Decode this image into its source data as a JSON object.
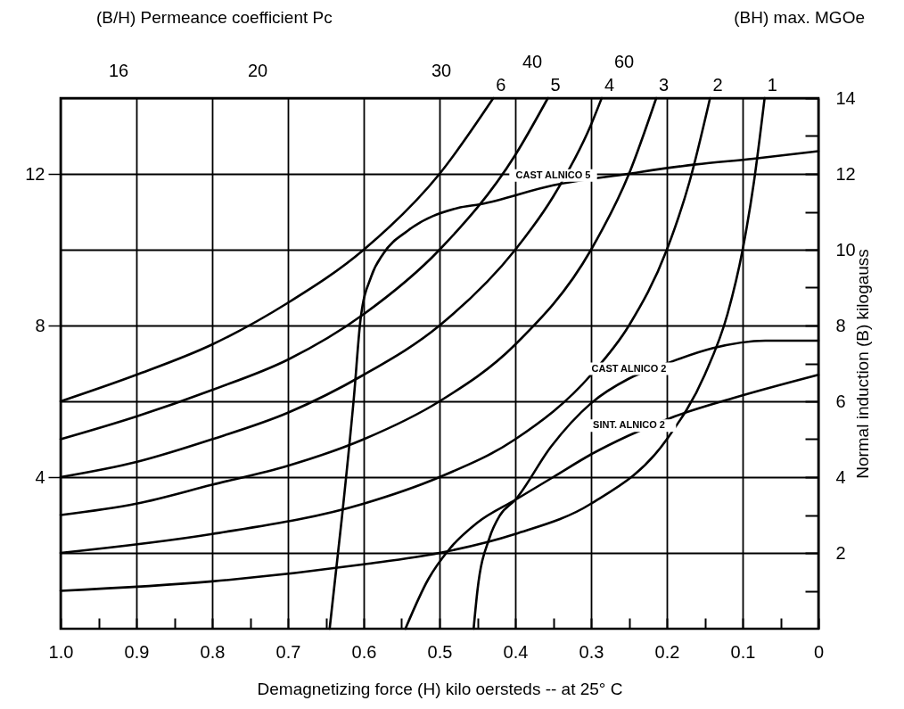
{
  "chart_data": {
    "type": "line",
    "xlabel": "Demagnetizing force (H) kilo oersteds -- at 25° C",
    "y2label": "Normal induction (B) kilogauss",
    "annotations": [
      "(B/H)   Permeance coefficient Pc",
      "(BH) max. MGOe",
      "16",
      "20",
      "30",
      "40",
      "60"
    ],
    "grid": true,
    "xlim": [
      1,
      0
    ],
    "xticks": [
      {
        "value": 1,
        "label": "1.0"
      },
      {
        "value": 0.95,
        "label": null
      },
      0.9,
      {
        "value": 0.85,
        "label": null
      },
      0.8,
      {
        "value": 0.75,
        "label": null
      },
      0.7,
      {
        "value": 0.65,
        "label": null
      },
      0.6,
      {
        "value": 0.55,
        "label": null
      },
      0.5,
      {
        "value": 0.45,
        "label": null
      },
      0.4,
      {
        "value": 0.35,
        "label": null
      },
      0.3,
      {
        "value": 0.25,
        "label": null
      },
      0.2,
      {
        "value": 0.15,
        "label": null
      },
      0.1,
      {
        "value": 0.05,
        "label": null
      },
      0
    ],
    "ylim": [
      0,
      14
    ],
    "yticks": [
      4,
      8,
      12
    ],
    "y2lim": [
      0,
      14
    ],
    "y2ticks": [
      {
        "value": 1,
        "label": null
      },
      2,
      {
        "value": 3,
        "label": null
      },
      4,
      {
        "value": 5,
        "label": null
      },
      6,
      {
        "value": 7,
        "label": null
      },
      8,
      {
        "value": 9,
        "label": null
      },
      10,
      {
        "value": 11,
        "label": null
      },
      12,
      {
        "value": 13,
        "label": null
      },
      14
    ],
    "series": [
      {
        "name": "6",
        "color": "#000000",
        "axis": "y2",
        "x": [
          1,
          0.9,
          0.8,
          0.7,
          0.6,
          0.5,
          0.429
        ],
        "values": [
          6,
          6.7,
          7.5,
          8.6,
          10,
          12,
          14
        ]
      },
      {
        "name": "5",
        "color": "#000000",
        "axis": "y2",
        "x": [
          1,
          0.9,
          0.8,
          0.7,
          0.6,
          0.5,
          0.4,
          0.357
        ],
        "values": [
          5,
          5.6,
          6.3,
          7.1,
          8.3,
          10,
          12.5,
          14
        ]
      },
      {
        "name": "4",
        "color": "#000000",
        "axis": "y2",
        "x": [
          1,
          0.9,
          0.8,
          0.7,
          0.6,
          0.5,
          0.4,
          0.35,
          0.3,
          0.286
        ],
        "values": [
          4,
          4.4,
          5,
          5.7,
          6.7,
          8,
          10,
          11.4,
          13.3,
          14
        ]
      },
      {
        "name": "3",
        "color": "#000000",
        "axis": "y2",
        "x": [
          1,
          0.9,
          0.8,
          0.7,
          0.6,
          0.5,
          0.4,
          0.3,
          0.25,
          0.214
        ],
        "values": [
          3,
          3.3,
          3.8,
          4.3,
          5,
          6,
          7.5,
          10,
          12,
          14
        ]
      },
      {
        "name": "2",
        "color": "#000000",
        "axis": "y2",
        "x": [
          1,
          0.8,
          0.6,
          0.5,
          0.4,
          0.3,
          0.25,
          0.2,
          0.17,
          0.143
        ],
        "values": [
          2,
          2.5,
          3.3,
          4,
          5,
          6.7,
          8,
          10,
          11.8,
          14
        ]
      },
      {
        "name": "1",
        "color": "#000000",
        "axis": "y2",
        "x": [
          1,
          0.8,
          0.6,
          0.5,
          0.4,
          0.3,
          0.2,
          0.15,
          0.12,
          0.1,
          0.085,
          0.071
        ],
        "values": [
          1,
          1.25,
          1.7,
          2,
          2.5,
          3.3,
          5,
          6.7,
          8.3,
          10,
          11.8,
          14
        ]
      },
      {
        "name": "CAST ALNICO 5",
        "color": "#000000",
        "axis": "y2",
        "x": [
          0.645,
          0.629,
          0.613,
          0.604,
          0.59,
          0.574,
          0.542,
          0.476,
          0.446,
          0.35,
          0.252,
          0.162,
          0.086,
          0
        ],
        "values": [
          0,
          2.9,
          6.1,
          8.2,
          9.3,
          9.9,
          10.5,
          11.1,
          11.2,
          11.7,
          12,
          12.25,
          12.4,
          12.6
        ]
      },
      {
        "name": "SINT. ALNICO 2",
        "color": "#000000",
        "axis": "y2",
        "x": [
          0.545,
          0.515,
          0.487,
          0.45,
          0.4,
          0.35,
          0.3,
          0.25,
          0.19,
          0.11,
          0
        ],
        "values": [
          0,
          1.3,
          2.1,
          2.8,
          3.4,
          4,
          4.6,
          5.1,
          5.6,
          6.1,
          6.7
        ]
      },
      {
        "name": "CAST ALNICO 2",
        "color": "#000000",
        "axis": "y2",
        "x": [
          0.455,
          0.45,
          0.434,
          0.42,
          0.4,
          0.353,
          0.3,
          0.25,
          0.2,
          0.14,
          0.07,
          0
        ],
        "values": [
          0,
          1,
          2.4,
          3,
          3.4,
          4.8,
          5.95,
          6.6,
          7,
          7.4,
          7.6,
          7.6
        ]
      }
    ]
  }
}
